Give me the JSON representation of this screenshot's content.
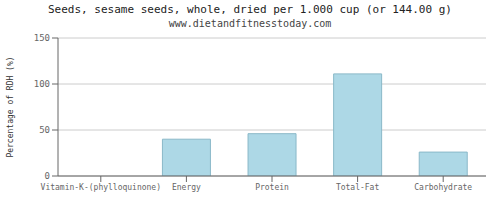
{
  "chart_data": {
    "type": "bar",
    "title": "Seeds, sesame seeds, whole, dried per 1.000 cup (or 144.00 g)",
    "subtitle": "www.dietandfitnesstoday.com",
    "categories": [
      "Vitamin-K-(phylloquinone)",
      "Energy",
      "Protein",
      "Total-Fat",
      "Carbohydrate"
    ],
    "values": [
      0,
      40,
      46,
      111,
      26
    ],
    "color": "#add8e6",
    "ylabel": "Percentage of RDH (%)",
    "ylim": [
      0,
      150
    ],
    "yticks": [
      0,
      50,
      100,
      150
    ],
    "grid": true
  }
}
